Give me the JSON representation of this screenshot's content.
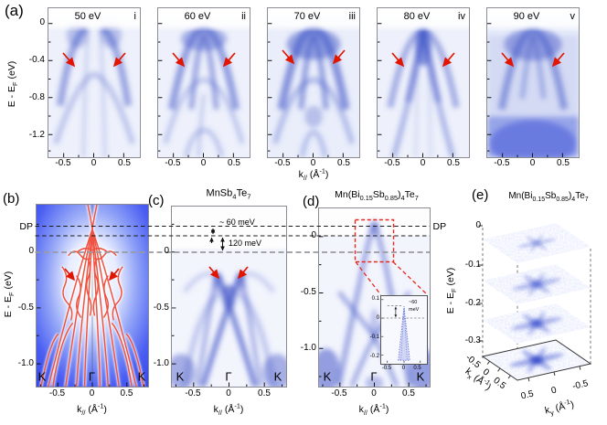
{
  "figure": {
    "panels": {
      "a": {
        "label": "(a)",
        "ylabel": "E - E_{F} (eV)",
        "yticks": [
          "0",
          "-0.4",
          "-0.8",
          "-1.2"
        ],
        "xlabel": "k_{//} (Å^{-1})",
        "xticks": [
          "-0.5",
          "0",
          "0.5"
        ],
        "spectra": [
          {
            "photon_energy": "50 eV",
            "index": "i"
          },
          {
            "photon_energy": "60 eV",
            "index": "ii"
          },
          {
            "photon_energy": "70 eV",
            "index": "iii"
          },
          {
            "photon_energy": "80 eV",
            "index": "iv"
          },
          {
            "photon_energy": "90 eV",
            "index": "v"
          }
        ]
      },
      "b": {
        "label": "(b)",
        "dp_label": "DP",
        "ylabel": "E - E_{F} (eV)",
        "yticks": [
          "0",
          "-0.5",
          "-1.0"
        ],
        "xlabel": "k_{//} (Å^{-1})",
        "xticks": [
          "-0.5",
          "0",
          "0.5"
        ],
        "kpoints": [
          "K",
          "Γ",
          "K"
        ]
      },
      "c": {
        "label": "(c)",
        "title": "MnSb_{4}Te_{7}",
        "gap_top": "~ 60 meV",
        "gap_bottom": "120 meV",
        "yticks": [
          "0",
          "-0.5",
          "-1.0"
        ],
        "xlabel": "k_{//} (Å^{-1})",
        "xticks": [
          "-0.5",
          "0",
          "0.5"
        ],
        "kpoints": [
          "K",
          "Γ",
          "K"
        ]
      },
      "d": {
        "label": "(d)",
        "title": "Mn(Bi_{0.15}Sb_{0.85})_{4}Te_{7}",
        "dp_label": "DP",
        "yticks": [
          "0",
          "-0.5",
          "-1.0"
        ],
        "xlabel": "k_{//} (Å^{-1})",
        "xticks": [
          "-0.5",
          "0",
          "0.5"
        ],
        "kpoints": [
          "K",
          "Γ",
          "K"
        ],
        "inset": {
          "annotation_value": "~60",
          "annotation_unit": "meV",
          "yticks": [
            "0.1",
            "0",
            "-0.1",
            "-0.2"
          ],
          "xticks": [
            "-0.5",
            "0",
            "0.5"
          ]
        }
      },
      "e": {
        "label": "(e)",
        "title": "Mn(Bi_{0.15}Sb_{0.85})_{4}Te_{7}",
        "ylabel": "E - E_{F} (eV)",
        "yticks": [
          "0",
          "-0.1",
          "-0.2",
          "-0.3"
        ],
        "kx_label": "k_{x} (Å^{-1})",
        "kx_ticks": [
          "-0.5",
          "0",
          "0.5"
        ],
        "ky_label": "k_{y} (Å^{-1})",
        "ky_ticks": [
          "0.5",
          "0",
          "-0.5"
        ]
      }
    },
    "colors": {
      "band_red": "#ef5240",
      "arrow_red": "#e21500",
      "background_blue": "#3d52ee",
      "band_blue": "#4457c8",
      "dashed_red": "#e8281e"
    }
  }
}
